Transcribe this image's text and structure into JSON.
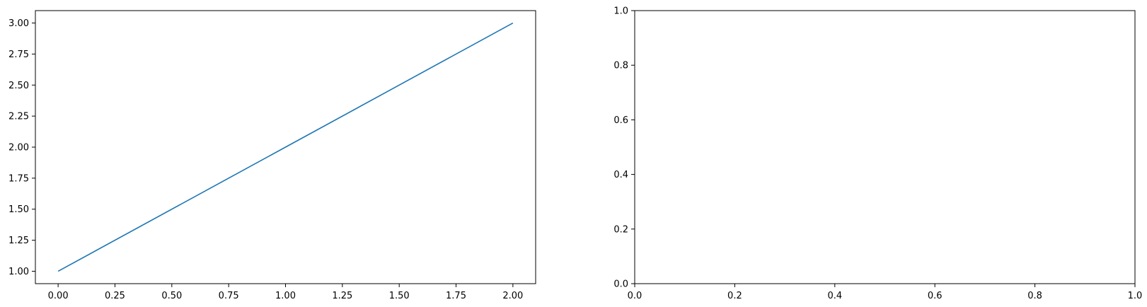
{
  "chart_data": [
    {
      "type": "line",
      "title": "",
      "xlabel": "",
      "ylabel": "",
      "xlim": [
        -0.1,
        2.1
      ],
      "ylim": [
        0.9,
        3.1
      ],
      "xticks": [
        0.0,
        0.25,
        0.5,
        0.75,
        1.0,
        1.25,
        1.5,
        1.75,
        2.0
      ],
      "xtick_labels": [
        "0.00",
        "0.25",
        "0.50",
        "0.75",
        "1.00",
        "1.25",
        "1.50",
        "1.75",
        "2.00"
      ],
      "yticks": [
        1.0,
        1.25,
        1.5,
        1.75,
        2.0,
        2.25,
        2.5,
        2.75,
        3.0
      ],
      "ytick_labels": [
        "1.00",
        "1.25",
        "1.50",
        "1.75",
        "2.00",
        "2.25",
        "2.50",
        "2.75",
        "3.00"
      ],
      "grid": false,
      "series": [
        {
          "x": [
            0,
            1,
            2
          ],
          "y": [
            1,
            2,
            3
          ],
          "color": "#1f77b4"
        }
      ]
    },
    {
      "type": "line",
      "title": "",
      "xlabel": "",
      "ylabel": "",
      "xlim": [
        0.0,
        1.0
      ],
      "ylim": [
        0.0,
        1.0
      ],
      "xticks": [
        0.0,
        0.2,
        0.4,
        0.6,
        0.8,
        1.0
      ],
      "xtick_labels": [
        "0.0",
        "0.2",
        "0.4",
        "0.6",
        "0.8",
        "1.0"
      ],
      "yticks": [
        0.0,
        0.2,
        0.4,
        0.6,
        0.8,
        1.0
      ],
      "ytick_labels": [
        "0.0",
        "0.2",
        "0.4",
        "0.6",
        "0.8",
        "1.0"
      ],
      "grid": false,
      "series": []
    }
  ]
}
